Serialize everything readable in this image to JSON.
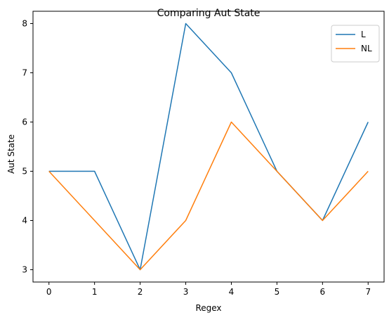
{
  "chart_data": {
    "type": "line",
    "title": "Comparing Aut State",
    "xlabel": "Regex",
    "ylabel": "Aut State",
    "x": [
      0,
      1,
      2,
      3,
      4,
      5,
      6,
      7
    ],
    "xlim": [
      -0.35,
      7.35
    ],
    "ylim": [
      2.75,
      8.25
    ],
    "xticks": [
      "0",
      "1",
      "2",
      "3",
      "4",
      "5",
      "6",
      "7"
    ],
    "yticks": [
      "3",
      "4",
      "5",
      "6",
      "7",
      "8"
    ],
    "grid": false,
    "legend_position": "top-right",
    "series": [
      {
        "name": "L",
        "color": "#1f77b4",
        "values": [
          5,
          5,
          3,
          8,
          7,
          5,
          4,
          6
        ]
      },
      {
        "name": "NL",
        "color": "#ff7f0e",
        "values": [
          5,
          4,
          3,
          4,
          6,
          5,
          4,
          5
        ]
      }
    ]
  }
}
